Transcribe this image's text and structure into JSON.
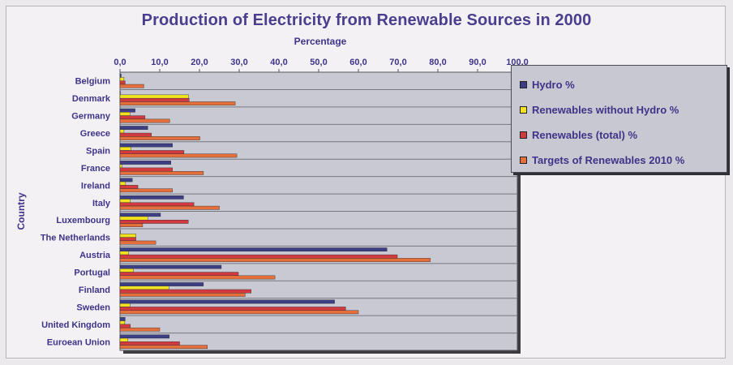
{
  "chart_data": {
    "type": "bar",
    "orientation": "horizontal",
    "title": "Production of Electricity from Renewable Sources in 2000",
    "xlabel": "Percentage",
    "ylabel": "Country",
    "xlim": [
      0,
      100
    ],
    "x_ticks": [
      "0,0",
      "10,0",
      "20,0",
      "30,0",
      "40,0",
      "50,0",
      "60,0",
      "70,0",
      "80,0",
      "90,0",
      "100,0"
    ],
    "grid": true,
    "legend_position": "top-right",
    "categories": [
      "Belgium",
      "Denmark",
      "Germany",
      "Greece",
      "Spain",
      "France",
      "Ireland",
      "Italy",
      "Luxembourg",
      "The Netherlands",
      "Austria",
      "Portugal",
      "Finland",
      "Sweden",
      "United Kingdom",
      "Euroean Union"
    ],
    "series": [
      {
        "name": "Hydro %",
        "color": "#3c3f83",
        "values": [
          0.3,
          0.1,
          3.8,
          7.0,
          13.2,
          12.8,
          3.1,
          16.0,
          10.2,
          0.1,
          67.2,
          25.5,
          21.0,
          54.0,
          1.3,
          12.4
        ]
      },
      {
        "name": "Renewables without Hydro %",
        "color": "#f2e21f",
        "values": [
          1.0,
          17.3,
          2.5,
          1.0,
          2.7,
          0.5,
          1.4,
          2.6,
          7.0,
          4.0,
          2.2,
          3.4,
          12.3,
          2.5,
          1.2,
          2.0
        ]
      },
      {
        "name": "Renewables (total) %",
        "color": "#d23a3f",
        "values": [
          1.3,
          17.4,
          6.3,
          7.9,
          16.1,
          13.2,
          4.5,
          18.6,
          17.2,
          4.0,
          69.8,
          29.8,
          33.0,
          56.8,
          2.6,
          15.0
        ]
      },
      {
        "name": "Targets of Renewables 2010 %",
        "color": "#e46f3a",
        "values": [
          6.0,
          29.0,
          12.5,
          20.1,
          29.4,
          21.0,
          13.2,
          25.0,
          5.7,
          9.0,
          78.1,
          39.0,
          31.5,
          60.0,
          10.0,
          22.0
        ]
      }
    ]
  }
}
